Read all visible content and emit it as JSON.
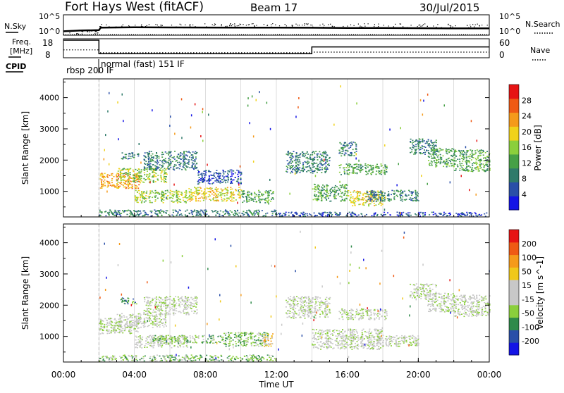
{
  "header": {
    "station": "Fort Hays West (fitACF)",
    "beam": "Beam 17",
    "date": "30/Jul/2015"
  },
  "top_panels": {
    "nsky_label": "N.Sky",
    "nsearch_label": "N.Search",
    "freq_label_line1": "Freq.",
    "freq_label_line2": "[MHz]",
    "nave_label": "Nave",
    "cpid_label": "CPID",
    "nsky_ticks": [
      "10^5",
      "10^0"
    ],
    "nsearch_ticks": [
      "10^5",
      "10^0"
    ],
    "freq_ticks": [
      "18",
      "8"
    ],
    "nave_ticks": [
      "60",
      "0"
    ],
    "cpid_segments": [
      "rbsp 200 IF",
      "normal (fast) 151 IF"
    ]
  },
  "colors": {
    "power": [
      "#1414e6",
      "#2a4fa8",
      "#2f7a6a",
      "#46a046",
      "#8bcf3c",
      "#f0d21a",
      "#f59a1a",
      "#ef5a14",
      "#e61414"
    ],
    "velocity": [
      "#e61414",
      "#ef5a14",
      "#f59a1a",
      "#f0c81a",
      "#c8c8c8",
      "#c8c8c8",
      "#8bcf3c",
      "#2f8a4a",
      "#2a4fa8",
      "#1414e6"
    ],
    "grid": "#bdbdbd"
  },
  "chart_data": [
    {
      "type": "line",
      "title": "N.Sky / N.Search",
      "x_range_hours": [
        0,
        24
      ],
      "series": [
        {
          "name": "N.Sky",
          "x": [
            0,
            1,
            2,
            2.1,
            4,
            6,
            8,
            10,
            12,
            14,
            16,
            18,
            20,
            22,
            24
          ],
          "values": [
            5,
            8,
            10,
            50,
            60,
            55,
            52,
            50,
            48,
            45,
            40,
            38,
            35,
            30,
            30
          ]
        },
        {
          "name": "N.Search",
          "x": [
            0,
            24
          ],
          "values": [
            1,
            1
          ]
        }
      ]
    },
    {
      "type": "line",
      "title": "Freq. / Nave",
      "x_range_hours": [
        0,
        24
      ],
      "ylim_freq": [
        8,
        18
      ],
      "ylim_nave": [
        0,
        60
      ],
      "series": [
        {
          "name": "Freq.",
          "x": [
            0,
            2,
            2,
            14,
            14,
            24
          ],
          "values": [
            18,
            18,
            10,
            10,
            14,
            14
          ]
        },
        {
          "name": "Nave",
          "x": [
            0,
            2,
            2,
            14,
            14,
            24
          ],
          "values": [
            28,
            28,
            18,
            18,
            20,
            20
          ]
        }
      ]
    },
    {
      "type": "heatmap",
      "title": "Power",
      "xlabel": "",
      "ylabel": "Slant Range [km]",
      "colorbar_label": "Power [dB]",
      "colorbar_ticks": [
        "28",
        "24",
        "20",
        "16",
        "12",
        "8",
        "4"
      ],
      "xlim_hours": [
        0,
        24
      ],
      "ylim_km": [
        180,
        4600
      ],
      "yticks": [
        "4000",
        "3000",
        "2000",
        "1000"
      ],
      "xticks": [
        "00:00",
        "04:00",
        "08:00",
        "12:00",
        "16:00",
        "20:00",
        "00:00"
      ],
      "echo_regions": [
        {
          "t0": 2.0,
          "t1": 4.3,
          "r0": 1100,
          "r1": 1600,
          "level": 6
        },
        {
          "t0": 3.0,
          "t1": 5.8,
          "r0": 1300,
          "r1": 1750,
          "level": 4
        },
        {
          "t0": 3.2,
          "t1": 4.2,
          "r0": 2050,
          "r1": 2250,
          "level": 2
        },
        {
          "t0": 4.5,
          "t1": 7.5,
          "r0": 1700,
          "r1": 2300,
          "level": 2
        },
        {
          "t0": 7.5,
          "t1": 10.0,
          "r0": 1250,
          "r1": 1700,
          "level": 1
        },
        {
          "t0": 4.0,
          "t1": 7.0,
          "r0": 650,
          "r1": 1050,
          "level": 4
        },
        {
          "t0": 7.0,
          "t1": 10.0,
          "r0": 700,
          "r1": 1150,
          "level": 5
        },
        {
          "t0": 10.0,
          "t1": 11.8,
          "r0": 650,
          "r1": 1050,
          "level": 3
        },
        {
          "t0": 2.0,
          "t1": 12.0,
          "r0": 220,
          "r1": 420,
          "level": 2
        },
        {
          "t0": 12.0,
          "t1": 24.0,
          "r0": 220,
          "r1": 350,
          "level": 1
        },
        {
          "t0": 12.5,
          "t1": 15.0,
          "r0": 1600,
          "r1": 2300,
          "level": 2
        },
        {
          "t0": 14.0,
          "t1": 16.0,
          "r0": 700,
          "r1": 1250,
          "level": 3
        },
        {
          "t0": 16.0,
          "t1": 18.0,
          "r0": 550,
          "r1": 1050,
          "level": 5
        },
        {
          "t0": 17.0,
          "t1": 20.0,
          "r0": 700,
          "r1": 1050,
          "level": 2
        },
        {
          "t0": 15.5,
          "t1": 18.2,
          "r0": 1550,
          "r1": 1900,
          "level": 3
        },
        {
          "t0": 15.5,
          "t1": 16.5,
          "r0": 2150,
          "r1": 2600,
          "level": 2
        },
        {
          "t0": 19.5,
          "t1": 21.0,
          "r0": 2200,
          "r1": 2700,
          "level": 2
        },
        {
          "t0": 20.5,
          "t1": 22.0,
          "r0": 1800,
          "r1": 2400,
          "level": 3
        },
        {
          "t0": 22.0,
          "t1": 24.0,
          "r0": 1650,
          "r1": 2350,
          "level": 3
        }
      ]
    },
    {
      "type": "heatmap",
      "title": "Velocity",
      "xlabel": "Time UT",
      "ylabel": "Slant Range [km]",
      "colorbar_label": "Velocity [m s^-1]",
      "colorbar_ticks": [
        "200",
        "100",
        "50",
        "15",
        "-15",
        "-50",
        "-100",
        "-200"
      ],
      "xlim_hours": [
        0,
        24
      ],
      "ylim_km": [
        180,
        4600
      ],
      "yticks": [
        "4000",
        "3000",
        "2000",
        "1000"
      ],
      "xticks": [
        "00:00",
        "04:00",
        "08:00",
        "12:00",
        "16:00",
        "20:00",
        "00:00"
      ],
      "echo_regions": [
        {
          "t0": 2.0,
          "t1": 4.3,
          "r0": 1100,
          "r1": 1600,
          "level": 4
        },
        {
          "t0": 3.0,
          "t1": 5.8,
          "r0": 1300,
          "r1": 1750,
          "level": 4
        },
        {
          "t0": 3.2,
          "t1": 4.2,
          "r0": 2050,
          "r1": 2250,
          "level": 2
        },
        {
          "t0": 4.5,
          "t1": 7.5,
          "r0": 1700,
          "r1": 2300,
          "level": 4
        },
        {
          "t0": 4.0,
          "t1": 7.0,
          "r0": 650,
          "r1": 1050,
          "level": 4
        },
        {
          "t0": 5.0,
          "t1": 9.0,
          "r0": 800,
          "r1": 1050,
          "level": 3
        },
        {
          "t0": 9.0,
          "t1": 11.5,
          "r0": 700,
          "r1": 1150,
          "level": 3
        },
        {
          "t0": 11.2,
          "t1": 11.8,
          "r0": 700,
          "r1": 1100,
          "level": 6
        },
        {
          "t0": 2.0,
          "t1": 12.0,
          "r0": 220,
          "r1": 420,
          "level": 3
        },
        {
          "t0": 12.5,
          "t1": 15.0,
          "r0": 1600,
          "r1": 2300,
          "level": 4
        },
        {
          "t0": 14.0,
          "t1": 18.0,
          "r0": 600,
          "r1": 1250,
          "level": 4
        },
        {
          "t0": 17.0,
          "t1": 20.0,
          "r0": 700,
          "r1": 1050,
          "level": 4
        },
        {
          "t0": 15.5,
          "t1": 18.2,
          "r0": 1550,
          "r1": 1900,
          "level": 4
        },
        {
          "t0": 19.5,
          "t1": 21.0,
          "r0": 2200,
          "r1": 2700,
          "level": 4
        },
        {
          "t0": 20.5,
          "t1": 22.0,
          "r0": 1800,
          "r1": 2400,
          "level": 4
        },
        {
          "t0": 22.0,
          "t1": 24.0,
          "r0": 1650,
          "r1": 2350,
          "level": 4
        }
      ]
    }
  ],
  "x_axis_label": "Time UT"
}
